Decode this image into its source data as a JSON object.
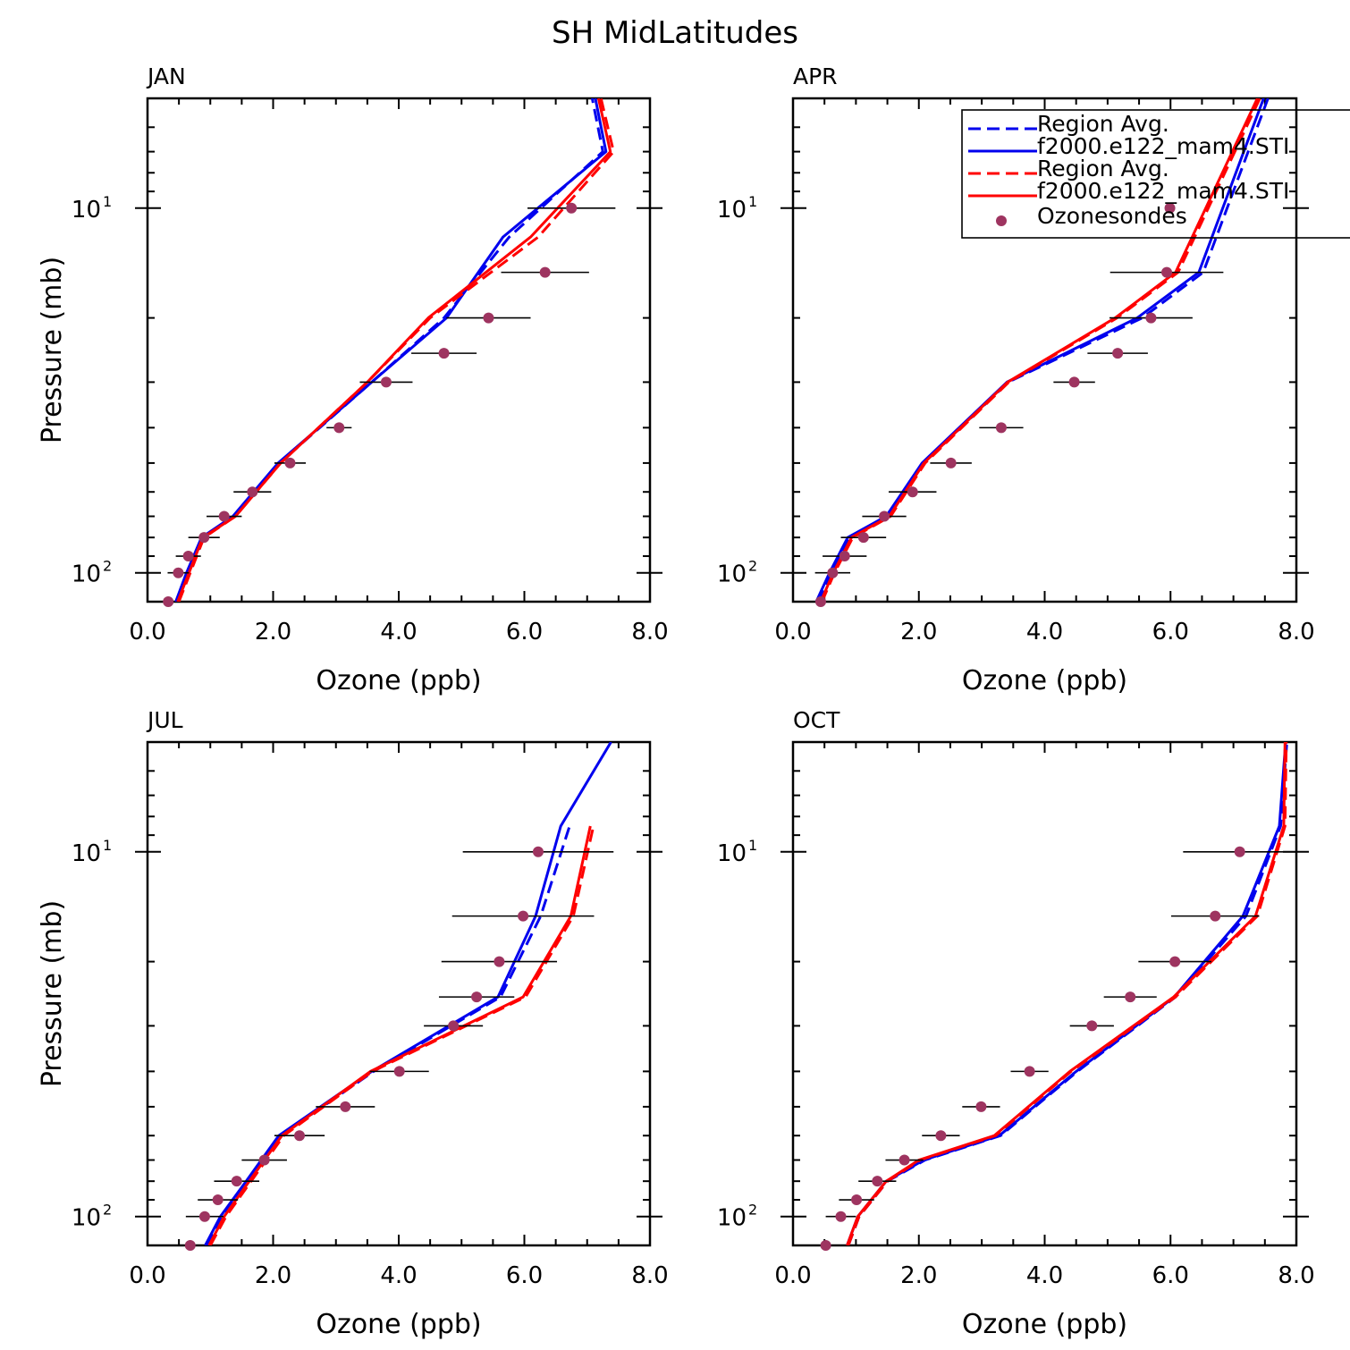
{
  "figure_title": "SH MidLatitudes",
  "colors": {
    "blue": "#0000ee",
    "red": "#ff0000",
    "marker": "#9e3460",
    "errorbar": "#000000"
  },
  "legend": {
    "entries": [
      {
        "label": "Region Avg.",
        "color": "#0000ee",
        "style": "dashed"
      },
      {
        "label": "f2000.e122_mam4.STI",
        "color": "#0000ee",
        "style": "solid"
      },
      {
        "label": "Region Avg.",
        "color": "#ff0000",
        "style": "dashed"
      },
      {
        "label": "f2000.e122_mam4.STI",
        "color": "#ff0000",
        "style": "solid"
      },
      {
        "label": "Ozonesondes",
        "color": "#9e3460",
        "style": "marker"
      }
    ]
  },
  "chart_data": [
    {
      "type": "line",
      "title": "JAN",
      "xlabel": "Ozone (ppb)",
      "ylabel": "Pressure (mb)",
      "xlim": [
        0,
        8
      ],
      "ylim": [
        120,
        5
      ],
      "yscale": "log",
      "xticks": [
        "0.0",
        "2.0",
        "4.0",
        "6.0",
        "8.0"
      ],
      "yticks": [
        {
          "label": "10",
          "exp": "1"
        },
        {
          "label": "10",
          "exp": "2"
        }
      ],
      "series": [
        {
          "name": "Region Avg.",
          "color": "#0000ee",
          "dash": true,
          "x": [
            0.48,
            0.66,
            0.9,
            1.38,
            2.1,
            3.57,
            4.72,
            5.76,
            7.25,
            7.08
          ],
          "y": [
            120,
            100,
            80,
            70,
            50,
            30,
            20,
            12,
            7,
            5
          ]
        },
        {
          "name": "f2000.e122_mam4.STI",
          "color": "#0000ee",
          "dash": false,
          "x": [
            0.45,
            0.62,
            0.86,
            1.36,
            2.08,
            3.57,
            4.76,
            5.66,
            7.3,
            7.13
          ],
          "y": [
            120,
            100,
            80,
            70,
            50,
            30,
            20,
            12,
            7,
            5
          ]
        },
        {
          "name": "Region Avg.",
          "color": "#ff0000",
          "dash": true,
          "x": [
            0.5,
            0.68,
            0.9,
            1.4,
            2.12,
            3.5,
            4.5,
            6.22,
            7.42,
            7.22
          ],
          "y": [
            120,
            100,
            80,
            70,
            50,
            30,
            20,
            12,
            7,
            5
          ]
        },
        {
          "name": "f2000.e122_mam4.STI",
          "color": "#ff0000",
          "dash": false,
          "x": [
            0.48,
            0.66,
            0.88,
            1.4,
            2.12,
            3.5,
            4.47,
            6.1,
            7.37,
            7.18
          ],
          "y": [
            120,
            100,
            80,
            70,
            50,
            30,
            20,
            12,
            7,
            5
          ]
        }
      ],
      "ozonesondes": [
        {
          "x": 0.33,
          "y": 120,
          "err": 0.0
        },
        {
          "x": 0.49,
          "y": 100,
          "err": 0.17
        },
        {
          "x": 0.65,
          "y": 90,
          "err": 0.2
        },
        {
          "x": 0.9,
          "y": 80,
          "err": 0.25
        },
        {
          "x": 1.22,
          "y": 70,
          "err": 0.28
        },
        {
          "x": 1.67,
          "y": 60,
          "err": 0.3
        },
        {
          "x": 2.27,
          "y": 50,
          "err": 0.25
        },
        {
          "x": 3.05,
          "y": 40,
          "err": 0.2
        },
        {
          "x": 3.8,
          "y": 30,
          "err": 0.42
        },
        {
          "x": 4.72,
          "y": 25,
          "err": 0.52
        },
        {
          "x": 5.43,
          "y": 20,
          "err": 0.67
        },
        {
          "x": 6.33,
          "y": 15,
          "err": 0.7
        },
        {
          "x": 6.75,
          "y": 10,
          "err": 0.7
        }
      ]
    },
    {
      "type": "line",
      "title": "APR",
      "xlabel": "Ozone (ppb)",
      "ylabel": "",
      "xlim": [
        0,
        8
      ],
      "ylim": [
        120,
        5
      ],
      "yscale": "log",
      "xticks": [
        "0.0",
        "2.0",
        "4.0",
        "6.0",
        "8.0"
      ],
      "yticks": [
        {
          "label": "10",
          "exp": "1"
        },
        {
          "label": "10",
          "exp": "2"
        }
      ],
      "series": [
        {
          "name": "Region Avg.",
          "color": "#0000ee",
          "dash": true,
          "x": [
            0.4,
            0.62,
            0.9,
            1.5,
            2.08,
            3.42,
            5.55,
            6.52,
            7.55
          ],
          "y": [
            120,
            100,
            80,
            70,
            50,
            30,
            20,
            15,
            5
          ]
        },
        {
          "name": "f2000.e122_mam4.STI",
          "color": "#0000ee",
          "dash": false,
          "x": [
            0.37,
            0.58,
            0.87,
            1.48,
            2.05,
            3.4,
            5.47,
            6.45,
            7.48
          ],
          "y": [
            120,
            100,
            80,
            70,
            50,
            30,
            20,
            15,
            5
          ]
        },
        {
          "name": "Region Avg.",
          "color": "#ff0000",
          "dash": true,
          "x": [
            0.46,
            0.66,
            0.95,
            1.55,
            2.1,
            3.43,
            5.15,
            6.12,
            7.42
          ],
          "y": [
            120,
            100,
            80,
            70,
            50,
            30,
            20,
            15,
            5
          ]
        },
        {
          "name": "f2000.e122_mam4.STI",
          "color": "#ff0000",
          "dash": false,
          "x": [
            0.44,
            0.64,
            0.93,
            1.53,
            2.08,
            3.41,
            5.12,
            6.08,
            7.38
          ],
          "y": [
            120,
            100,
            80,
            70,
            50,
            30,
            20,
            15,
            5
          ]
        }
      ],
      "ozonesondes": [
        {
          "x": 0.44,
          "y": 120,
          "err": 0.0
        },
        {
          "x": 0.63,
          "y": 100,
          "err": 0.28
        },
        {
          "x": 0.82,
          "y": 90,
          "err": 0.35
        },
        {
          "x": 1.12,
          "y": 80,
          "err": 0.36
        },
        {
          "x": 1.45,
          "y": 70,
          "err": 0.35
        },
        {
          "x": 1.9,
          "y": 60,
          "err": 0.38
        },
        {
          "x": 2.51,
          "y": 50,
          "err": 0.33
        },
        {
          "x": 3.31,
          "y": 40,
          "err": 0.35
        },
        {
          "x": 4.47,
          "y": 30,
          "err": 0.33
        },
        {
          "x": 5.16,
          "y": 25,
          "err": 0.48
        },
        {
          "x": 5.69,
          "y": 20,
          "err": 0.66
        },
        {
          "x": 5.94,
          "y": 15,
          "err": 0.9
        },
        {
          "x": 5.99,
          "y": 10,
          "err": 0.0
        }
      ]
    },
    {
      "type": "line",
      "title": "JUL",
      "xlabel": "Ozone (ppb)",
      "ylabel": "Pressure (mb)",
      "xlim": [
        0,
        8
      ],
      "ylim": [
        120,
        5
      ],
      "yscale": "log",
      "xticks": [
        "0.0",
        "2.0",
        "4.0",
        "6.0",
        "8.0"
      ],
      "yticks": [
        {
          "label": "10",
          "exp": "1"
        },
        {
          "label": "10",
          "exp": "2"
        }
      ],
      "series": [
        {
          "name": "Region Avg.",
          "color": "#0000ee",
          "dash": true,
          "x": [
            0.95,
            1.2,
            1.6,
            2.12,
            3.6,
            5.62,
            6.26,
            6.72
          ],
          "y": [
            120,
            100,
            80,
            60,
            40,
            25,
            15,
            8.5
          ]
        },
        {
          "name": "f2000.e122_mam4.STI",
          "color": "#0000ee",
          "dash": false,
          "x": [
            0.92,
            1.16,
            1.57,
            2.09,
            3.57,
            5.58,
            6.18,
            6.58,
            7.38
          ],
          "y": [
            120,
            100,
            80,
            60,
            40,
            25,
            15,
            8.5,
            5
          ]
        },
        {
          "name": "Region Avg.",
          "color": "#ff0000",
          "dash": true,
          "x": [
            1.0,
            1.25,
            1.65,
            2.17,
            3.58,
            6.02,
            6.78,
            7.1
          ],
          "y": [
            120,
            100,
            80,
            60,
            40,
            25,
            15,
            8.5
          ]
        },
        {
          "name": "f2000.e122_mam4.STI",
          "color": "#ff0000",
          "dash": false,
          "x": [
            0.98,
            1.22,
            1.62,
            2.14,
            3.55,
            5.98,
            6.74,
            7.05
          ],
          "y": [
            120,
            100,
            80,
            60,
            40,
            25,
            15,
            8.5
          ]
        }
      ],
      "ozonesondes": [
        {
          "x": 0.68,
          "y": 120,
          "err": 0.0
        },
        {
          "x": 0.91,
          "y": 100,
          "err": 0.3
        },
        {
          "x": 1.12,
          "y": 90,
          "err": 0.32
        },
        {
          "x": 1.42,
          "y": 80,
          "err": 0.36
        },
        {
          "x": 1.86,
          "y": 70,
          "err": 0.36
        },
        {
          "x": 2.42,
          "y": 60,
          "err": 0.4
        },
        {
          "x": 3.15,
          "y": 50,
          "err": 0.47
        },
        {
          "x": 4.01,
          "y": 40,
          "err": 0.47
        },
        {
          "x": 4.87,
          "y": 30,
          "err": 0.47
        },
        {
          "x": 5.24,
          "y": 25,
          "err": 0.6
        },
        {
          "x": 5.6,
          "y": 20,
          "err": 0.92
        },
        {
          "x": 5.98,
          "y": 15,
          "err": 1.13
        },
        {
          "x": 6.22,
          "y": 10,
          "err": 1.2
        }
      ]
    },
    {
      "type": "line",
      "title": "OCT",
      "xlabel": "Ozone (ppb)",
      "ylabel": "",
      "xlim": [
        0,
        8
      ],
      "ylim": [
        120,
        5
      ],
      "yscale": "log",
      "xticks": [
        "0.0",
        "2.0",
        "4.0",
        "6.0",
        "8.0"
      ],
      "yticks": [
        {
          "label": "10",
          "exp": "1"
        },
        {
          "label": "10",
          "exp": "2"
        }
      ],
      "series": [
        {
          "name": "Region Avg.",
          "color": "#0000ee",
          "dash": true,
          "x": [
            0.88,
            1.05,
            1.5,
            2.1,
            3.3,
            4.52,
            6.08,
            7.2,
            7.75,
            7.85
          ],
          "y": [
            120,
            100,
            80,
            70,
            60,
            40,
            25,
            15,
            8.5,
            5
          ]
        },
        {
          "name": "f2000.e122_mam4.STI",
          "color": "#0000ee",
          "dash": false,
          "x": [
            0.86,
            1.03,
            1.48,
            2.08,
            3.28,
            4.5,
            6.06,
            7.15,
            7.73,
            7.83
          ],
          "y": [
            120,
            100,
            80,
            70,
            60,
            40,
            25,
            15,
            8.5,
            5
          ]
        },
        {
          "name": "Region Avg.",
          "color": "#ff0000",
          "dash": true,
          "x": [
            0.88,
            1.05,
            1.5,
            2.02,
            3.22,
            4.42,
            6.08,
            7.38,
            7.82,
            7.84
          ],
          "y": [
            120,
            100,
            80,
            70,
            60,
            40,
            25,
            15,
            8.5,
            5
          ]
        },
        {
          "name": "f2000.e122_mam4.STI",
          "color": "#ff0000",
          "dash": false,
          "x": [
            0.86,
            1.03,
            1.48,
            2.0,
            3.2,
            4.4,
            6.05,
            7.35,
            7.8,
            7.82
          ],
          "y": [
            120,
            100,
            80,
            70,
            60,
            40,
            25,
            15,
            8.5,
            5
          ]
        }
      ],
      "ozonesondes": [
        {
          "x": 0.52,
          "y": 120,
          "err": 0.0
        },
        {
          "x": 0.76,
          "y": 100,
          "err": 0.24
        },
        {
          "x": 1.01,
          "y": 90,
          "err": 0.28
        },
        {
          "x": 1.34,
          "y": 80,
          "err": 0.3
        },
        {
          "x": 1.77,
          "y": 70,
          "err": 0.3
        },
        {
          "x": 2.35,
          "y": 60,
          "err": 0.3
        },
        {
          "x": 2.99,
          "y": 50,
          "err": 0.3
        },
        {
          "x": 3.76,
          "y": 40,
          "err": 0.3
        },
        {
          "x": 4.75,
          "y": 30,
          "err": 0.35
        },
        {
          "x": 5.36,
          "y": 25,
          "err": 0.42
        },
        {
          "x": 6.07,
          "y": 20,
          "err": 0.58
        },
        {
          "x": 6.71,
          "y": 15,
          "err": 0.7
        },
        {
          "x": 7.1,
          "y": 10,
          "err": 0.9
        }
      ]
    }
  ]
}
